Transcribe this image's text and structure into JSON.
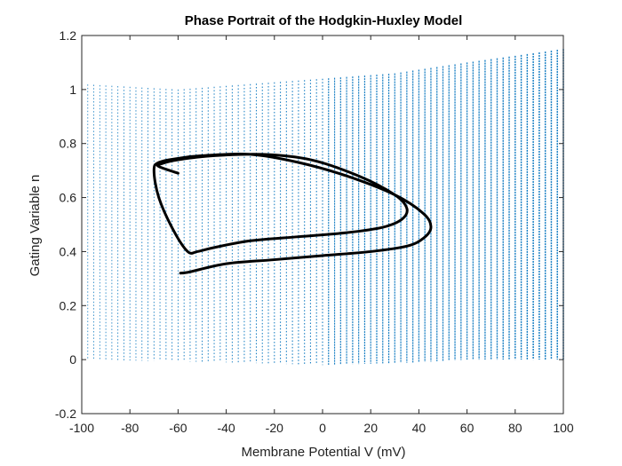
{
  "chart_data": {
    "type": "line",
    "title": "Phase Portrait of the Hodgkin-Huxley Model",
    "xlabel": "Membrane Potential V (mV)",
    "ylabel": "Gating Variable n",
    "xlim": [
      -100,
      100
    ],
    "ylim": [
      -0.2,
      1.2
    ],
    "xticks": [
      -100,
      -80,
      -60,
      -40,
      -20,
      0,
      20,
      40,
      60,
      80,
      100
    ],
    "yticks": [
      -0.2,
      0,
      0.2,
      0.4,
      0.6,
      0.8,
      1,
      1.2
    ],
    "xtick_labels": [
      "-100",
      "-80",
      "-60",
      "-40",
      "-20",
      "0",
      "20",
      "40",
      "60",
      "80",
      "100"
    ],
    "ytick_labels": [
      "-0.2",
      "0",
      "0.2",
      "0.4",
      "0.6",
      "0.8",
      "1",
      "1.2"
    ],
    "grid": false,
    "colors": {
      "vector_field": "#0072BD",
      "trajectory": "#000000"
    },
    "vector_field": {
      "description_type": "quiver",
      "x_start": -100,
      "x_end": 100,
      "x_step": 2.5,
      "y_range": [
        0,
        1
      ],
      "upper_envelope": [
        [
          -100,
          1.02
        ],
        [
          -60,
          1.0
        ],
        [
          -30,
          1.02
        ],
        [
          0,
          1.04
        ],
        [
          30,
          1.06
        ],
        [
          60,
          1.1
        ],
        [
          100,
          1.15
        ]
      ],
      "lower_envelope": [
        [
          -100,
          0.0
        ],
        [
          -40,
          -0.01
        ],
        [
          0,
          -0.02
        ],
        [
          40,
          -0.01
        ],
        [
          60,
          0.0
        ],
        [
          100,
          0.0
        ]
      ]
    },
    "series": [
      {
        "x": [
          -59,
          -55,
          -40,
          -20,
          0,
          20,
          35,
          42,
          45,
          42,
          30,
          10,
          -10,
          -30,
          -50,
          -60,
          -68,
          -70,
          -68,
          -62,
          -56,
          -52,
          -45,
          -30,
          -10,
          10,
          25,
          33,
          35,
          30,
          15,
          -5,
          -25,
          -45,
          -60,
          -67,
          -68,
          -60
        ],
        "y": [
          0.32,
          0.325,
          0.355,
          0.37,
          0.385,
          0.4,
          0.42,
          0.45,
          0.49,
          0.54,
          0.61,
          0.68,
          0.73,
          0.76,
          0.755,
          0.745,
          0.73,
          0.7,
          0.6,
          0.48,
          0.4,
          0.4,
          0.415,
          0.44,
          0.455,
          0.47,
          0.49,
          0.52,
          0.56,
          0.61,
          0.68,
          0.74,
          0.76,
          0.755,
          0.74,
          0.725,
          0.715,
          0.69
        ]
      }
    ]
  }
}
